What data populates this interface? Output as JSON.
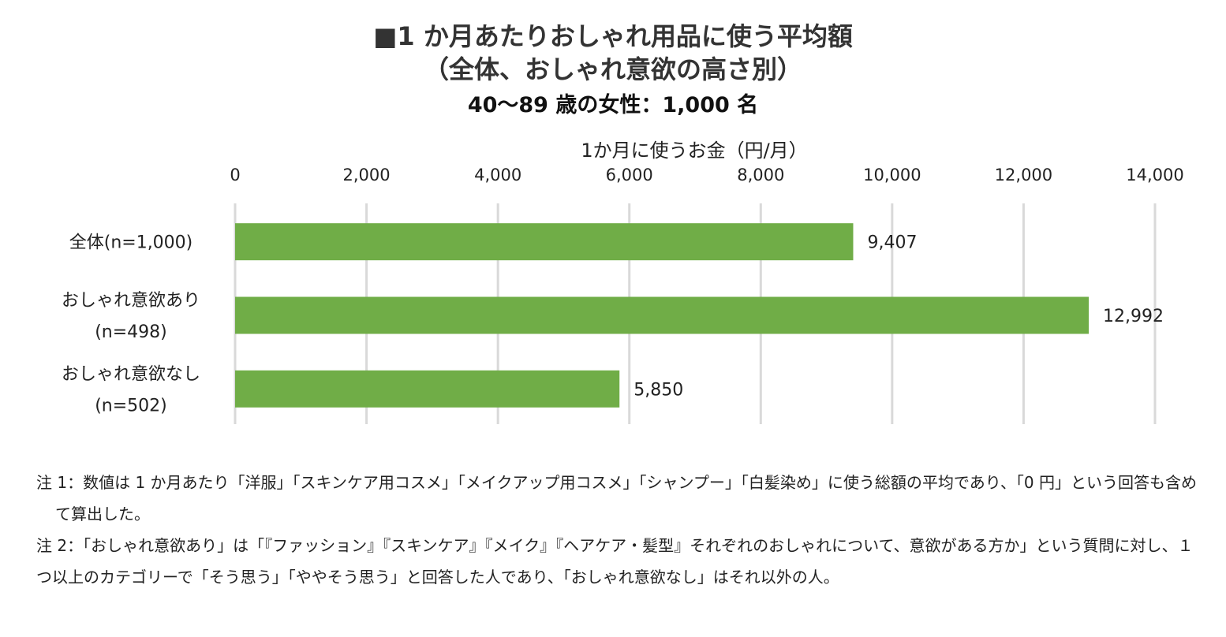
{
  "title": {
    "line1": "■1 か月あたりおしゃれ用品に使う平均額",
    "line2": "（全体、おしゃれ意欲の高さ別）",
    "subtitle": "40〜89 歳の女性：1,000 名"
  },
  "chart_data": {
    "type": "bar",
    "orientation": "horizontal",
    "xlabel": "1か月に使うお金（円/月）",
    "xaxis_position": "top",
    "xlim": [
      0,
      14000
    ],
    "xticks": [
      0,
      2000,
      4000,
      6000,
      8000,
      10000,
      12000,
      14000
    ],
    "xtick_labels": [
      "0",
      "2,000",
      "4,000",
      "6,000",
      "8,000",
      "10,000",
      "12,000",
      "14,000"
    ],
    "grid": true,
    "categories": [
      [
        "全体(n=1,000)"
      ],
      [
        "おしゃれ意欲あり",
        "(n=498)"
      ],
      [
        "おしゃれ意欲なし",
        "(n=502)"
      ]
    ],
    "values": [
      9407,
      12992,
      5850
    ],
    "value_labels": [
      "9,407",
      "12,992",
      "5,850"
    ],
    "bar_color": "#70AD47",
    "grid_color": "#D9D9D9"
  },
  "notes": {
    "note1": "注 1：数値は 1 か月あたり「洋服」「スキンケア用コスメ」「メイクアップ用コスメ」「シャンプー」「白髪染め」に使う総額の平均であり、「0 円」という回答も含めて算出した。",
    "note2": "注 2：「おしゃれ意欲あり」は「『ファッション』『スキンケア』『メイク』『ヘアケア・髪型』それぞれのおしゃれについて、意欲がある方か」という質問に対し、１つ以上のカテゴリーで「そう思う」「ややそう思う」と回答した人であり、「おしゃれ意欲なし」はそれ以外の人。"
  }
}
